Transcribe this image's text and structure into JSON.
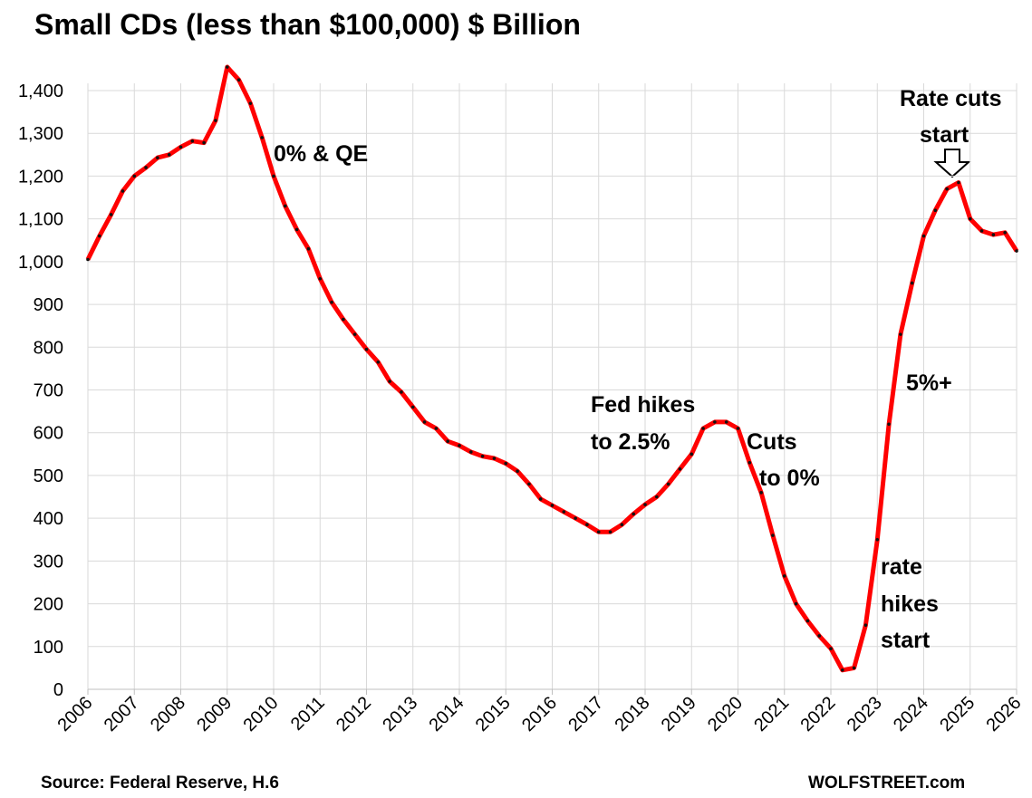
{
  "chart_data": {
    "type": "line",
    "title": "Small CDs (less than $100,000) $ Billion",
    "source": "Source: Federal Reserve, H.6",
    "credit": "WOLFSTREET.com",
    "annotations": [
      "0% & QE",
      "Fed hikes",
      "to 2.5%",
      "Cuts",
      "to 0%",
      "rate",
      "hikes",
      "start",
      "5%+",
      "Rate cuts",
      "start"
    ],
    "x": [
      2006,
      2006.25,
      2006.5,
      2006.75,
      2007,
      2007.25,
      2007.5,
      2007.75,
      2008,
      2008.25,
      2008.5,
      2008.75,
      2009,
      2009.25,
      2009.5,
      2009.75,
      2010,
      2010.25,
      2010.5,
      2010.75,
      2011,
      2011.25,
      2011.5,
      2011.75,
      2012,
      2012.25,
      2012.5,
      2012.75,
      2013,
      2013.25,
      2013.5,
      2013.75,
      2014,
      2014.25,
      2014.5,
      2014.75,
      2015,
      2015.25,
      2015.5,
      2015.75,
      2016,
      2016.25,
      2016.5,
      2016.75,
      2017,
      2017.25,
      2017.5,
      2017.75,
      2018,
      2018.25,
      2018.5,
      2018.75,
      2019,
      2019.25,
      2019.5,
      2019.75,
      2020,
      2020.25,
      2020.5,
      2020.75,
      2021,
      2021.25,
      2021.5,
      2021.75,
      2022,
      2022.25,
      2022.5,
      2022.75,
      2023,
      2023.25,
      2023.5,
      2023.75,
      2024,
      2024.25,
      2024.5,
      2024.75,
      2025,
      2025.25,
      2025.5,
      2025.75,
      2026
    ],
    "series": [
      {
        "name": "Small CDs",
        "color": "#ff0000",
        "values": [
          1005,
          1060,
          1110,
          1165,
          1200,
          1220,
          1243,
          1250,
          1268,
          1282,
          1278,
          1330,
          1455,
          1425,
          1370,
          1290,
          1200,
          1130,
          1075,
          1030,
          960,
          905,
          865,
          830,
          795,
          765,
          720,
          695,
          660,
          625,
          610,
          580,
          570,
          555,
          545,
          540,
          528,
          510,
          480,
          445,
          430,
          415,
          400,
          385,
          368,
          368,
          385,
          410,
          432,
          450,
          480,
          515,
          550,
          610,
          625,
          625,
          610,
          530,
          460,
          360,
          265,
          200,
          160,
          125,
          95,
          45,
          50,
          150,
          350,
          620,
          830,
          950,
          1060,
          1120,
          1170,
          1185,
          1100,
          1072,
          1063,
          1068,
          1025
        ]
      }
    ],
    "xlim": [
      2006,
      2026
    ],
    "xticks": [
      2006,
      2007,
      2008,
      2009,
      2010,
      2011,
      2012,
      2013,
      2014,
      2015,
      2016,
      2017,
      2018,
      2019,
      2020,
      2021,
      2022,
      2023,
      2024,
      2025,
      2026
    ],
    "ylim": [
      0,
      1400
    ],
    "yticks": [
      0,
      100,
      200,
      300,
      400,
      500,
      600,
      700,
      800,
      900,
      {
        "value": 1000,
        "label": "1,000"
      },
      {
        "value": 1100,
        "label": "1,100"
      },
      {
        "value": 1200,
        "label": "1,200"
      },
      {
        "value": 1300,
        "label": "1,300"
      },
      {
        "value": 1400,
        "label": "1,400"
      }
    ],
    "grid": true
  }
}
